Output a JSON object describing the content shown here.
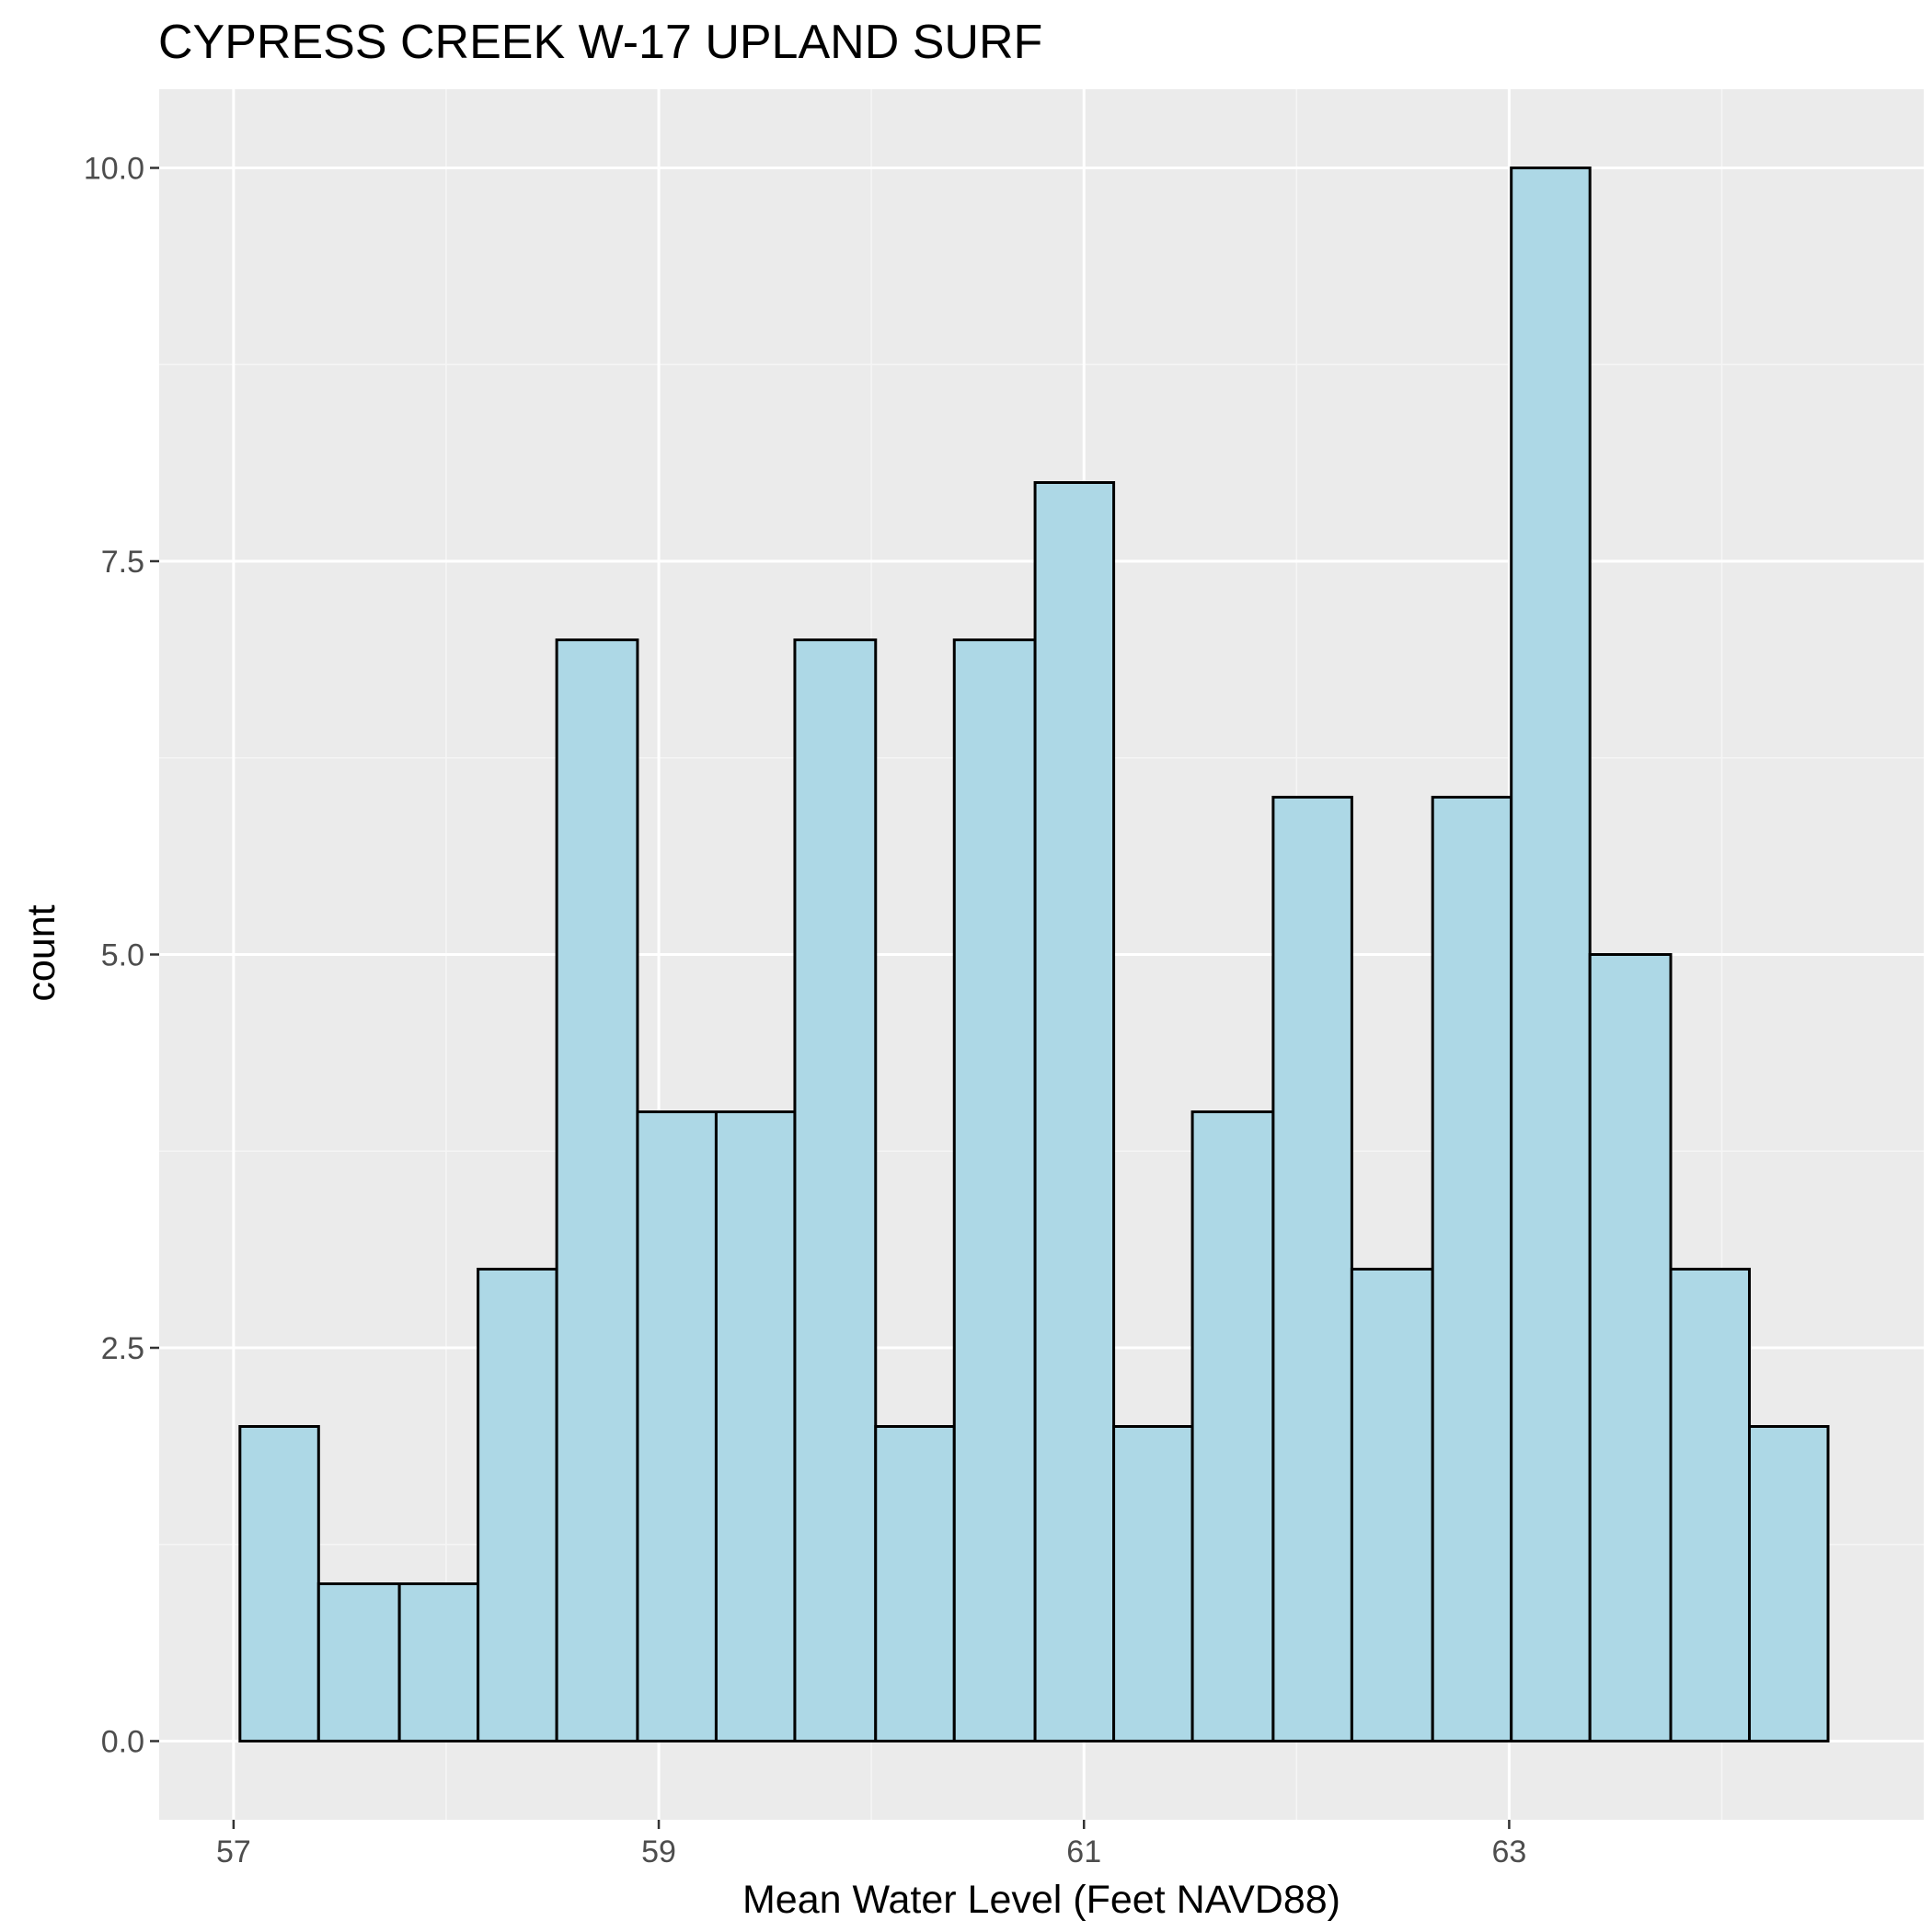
{
  "chart_data": {
    "type": "bar",
    "title": "CYPRESS CREEK W-17 UPLAND SURF",
    "xlabel": "Mean Water Level (Feet NAVD88)",
    "ylabel": "count",
    "xlim": [
      56.65,
      64.95
    ],
    "ylim": [
      -0.5,
      10.5
    ],
    "x_ticks": [
      57,
      59,
      61,
      63
    ],
    "x_tick_labels": [
      "57",
      "59",
      "61",
      "63"
    ],
    "y_ticks": [
      0,
      2.5,
      5,
      7.5,
      10
    ],
    "y_tick_labels": [
      "0.0",
      "2.5",
      "5.0",
      "7.5",
      "10.0"
    ],
    "bin_width": 0.3737,
    "bins": [
      {
        "start": 57.03,
        "end": 57.4,
        "count": 2
      },
      {
        "start": 57.4,
        "end": 57.78,
        "count": 1
      },
      {
        "start": 57.78,
        "end": 58.15,
        "count": 1
      },
      {
        "start": 58.15,
        "end": 58.52,
        "count": 3
      },
      {
        "start": 58.52,
        "end": 58.9,
        "count": 7
      },
      {
        "start": 58.9,
        "end": 59.27,
        "count": 4
      },
      {
        "start": 59.27,
        "end": 59.64,
        "count": 4
      },
      {
        "start": 59.64,
        "end": 60.02,
        "count": 7
      },
      {
        "start": 60.02,
        "end": 60.39,
        "count": 2
      },
      {
        "start": 60.39,
        "end": 60.77,
        "count": 7
      },
      {
        "start": 60.77,
        "end": 61.14,
        "count": 8
      },
      {
        "start": 61.14,
        "end": 61.51,
        "count": 2
      },
      {
        "start": 61.51,
        "end": 61.89,
        "count": 4
      },
      {
        "start": 61.89,
        "end": 62.26,
        "count": 6
      },
      {
        "start": 62.26,
        "end": 62.64,
        "count": 3
      },
      {
        "start": 62.64,
        "end": 63.01,
        "count": 6
      },
      {
        "start": 63.01,
        "end": 63.38,
        "count": 10
      },
      {
        "start": 63.38,
        "end": 63.76,
        "count": 5
      },
      {
        "start": 63.76,
        "end": 64.13,
        "count": 3
      },
      {
        "start": 64.13,
        "end": 64.5,
        "count": 2
      }
    ],
    "grid": true,
    "legend": "none",
    "colors": {
      "panel_background": "#ebebeb",
      "grid_major": "#ffffff",
      "grid_minor": "#f5f5f5",
      "bar_fill": "#add8e6",
      "bar_outline": "#000000",
      "tick_text": "#4d4d4d",
      "tick_mark": "#333333",
      "text": "#000000"
    }
  }
}
